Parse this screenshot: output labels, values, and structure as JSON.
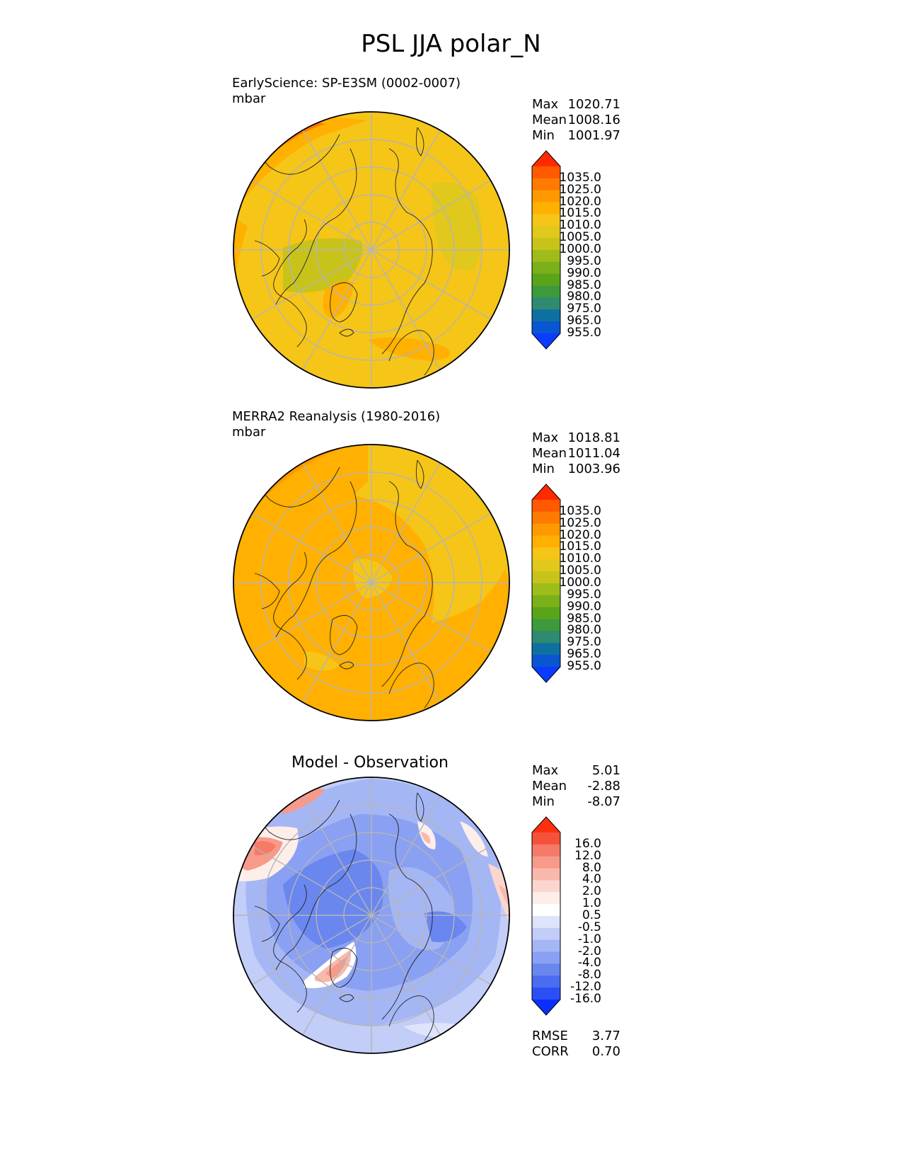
{
  "figure": {
    "title": "PSL JJA polar_N"
  },
  "panels": [
    {
      "id": "test",
      "title": "EarlyScience: SP-E3SM (0002-0007)",
      "units": "mbar",
      "center_title": "",
      "stats": [
        {
          "label": "Max",
          "value": "1020.71"
        },
        {
          "label": "Mean",
          "value": "1008.16"
        },
        {
          "label": "Min",
          "value": "1001.97"
        }
      ],
      "colorbar": {
        "labels": [
          "1035.0",
          "1025.0",
          "1020.0",
          "1015.0",
          "1010.0",
          "1005.0",
          "1000.0",
          "995.0",
          "990.0",
          "985.0",
          "980.0",
          "975.0",
          "965.0",
          "955.0"
        ],
        "colors": [
          "#ff2a00",
          "#ff5a00",
          "#ff7a00",
          "#ff9900",
          "#ffb000",
          "#f5c518",
          "#e0c81c",
          "#c8c31a",
          "#9ebd1a",
          "#7bb01a",
          "#5aa41a",
          "#3c9a3c",
          "#2e8a70",
          "#0e70a0",
          "#0a55d2",
          "#0a3cff"
        ],
        "top_color": "#ff2a00",
        "bottom_color": "#0a3cff"
      }
    },
    {
      "id": "reference",
      "title": "MERRA2 Reanalysis (1980-2016)",
      "units": "mbar",
      "center_title": "",
      "stats": [
        {
          "label": "Max",
          "value": "1018.81"
        },
        {
          "label": "Mean",
          "value": "1011.04"
        },
        {
          "label": "Min",
          "value": "1003.96"
        }
      ],
      "colorbar": {
        "labels": [
          "1035.0",
          "1025.0",
          "1020.0",
          "1015.0",
          "1010.0",
          "1005.0",
          "1000.0",
          "995.0",
          "990.0",
          "985.0",
          "980.0",
          "975.0",
          "965.0",
          "955.0"
        ],
        "colors": [
          "#ff2a00",
          "#ff5a00",
          "#ff7a00",
          "#ff9900",
          "#ffb000",
          "#f5c518",
          "#e0c81c",
          "#c8c31a",
          "#9ebd1a",
          "#7bb01a",
          "#5aa41a",
          "#3c9a3c",
          "#2e8a70",
          "#0e70a0",
          "#0a55d2",
          "#0a3cff"
        ],
        "top_color": "#ff2a00",
        "bottom_color": "#0a3cff"
      }
    },
    {
      "id": "diff",
      "title": "",
      "units": "",
      "center_title": "Model - Observation",
      "stats": [
        {
          "label": "Max",
          "value": "5.01"
        },
        {
          "label": "Mean",
          "value": "-2.88"
        },
        {
          "label": "Min",
          "value": "-8.07"
        }
      ],
      "extra_stats": [
        {
          "label": "RMSE",
          "value": "3.77"
        },
        {
          "label": "CORR",
          "value": "0.70"
        }
      ],
      "colorbar": {
        "labels": [
          "16.0",
          "12.0",
          "8.0",
          "4.0",
          "2.0",
          "1.0",
          "0.5",
          "-0.5",
          "-1.0",
          "-2.0",
          "-4.0",
          "-8.0",
          "-12.0",
          "-16.0"
        ],
        "colors": [
          "#ff3010",
          "#f5523a",
          "#f57a68",
          "#f79a8a",
          "#f9b8ac",
          "#fbd6ce",
          "#fdeeea",
          "#ffffff",
          "#dde4fb",
          "#c2cdf8",
          "#a5b6f5",
          "#8aa0f2",
          "#6a86ef",
          "#4a6cf0",
          "#2c4ff5",
          "#0a30ff"
        ],
        "top_color": "#ff3010",
        "bottom_color": "#0a30ff"
      }
    }
  ],
  "chart_data": [
    {
      "type": "heatmap",
      "title": "EarlyScience: SP-E3SM (0002-0007)",
      "subtitle": "mbar",
      "projection": "north polar stereographic",
      "colorbar_levels": [
        955,
        965,
        975,
        980,
        985,
        990,
        995,
        1000,
        1005,
        1010,
        1015,
        1020,
        1025,
        1035
      ],
      "max": 1020.71,
      "mean": 1008.16,
      "min": 1001.97
    },
    {
      "type": "heatmap",
      "title": "MERRA2 Reanalysis (1980-2016)",
      "subtitle": "mbar",
      "projection": "north polar stereographic",
      "colorbar_levels": [
        955,
        965,
        975,
        980,
        985,
        990,
        995,
        1000,
        1005,
        1010,
        1015,
        1020,
        1025,
        1035
      ],
      "max": 1018.81,
      "mean": 1011.04,
      "min": 1003.96
    },
    {
      "type": "heatmap",
      "title": "Model - Observation",
      "projection": "north polar stereographic",
      "colorbar_levels": [
        -16,
        -12,
        -8,
        -4,
        -2,
        -1,
        -0.5,
        0.5,
        1,
        2,
        4,
        8,
        12,
        16
      ],
      "max": 5.01,
      "mean": -2.88,
      "min": -8.07,
      "rmse": 3.77,
      "corr": 0.7
    }
  ]
}
